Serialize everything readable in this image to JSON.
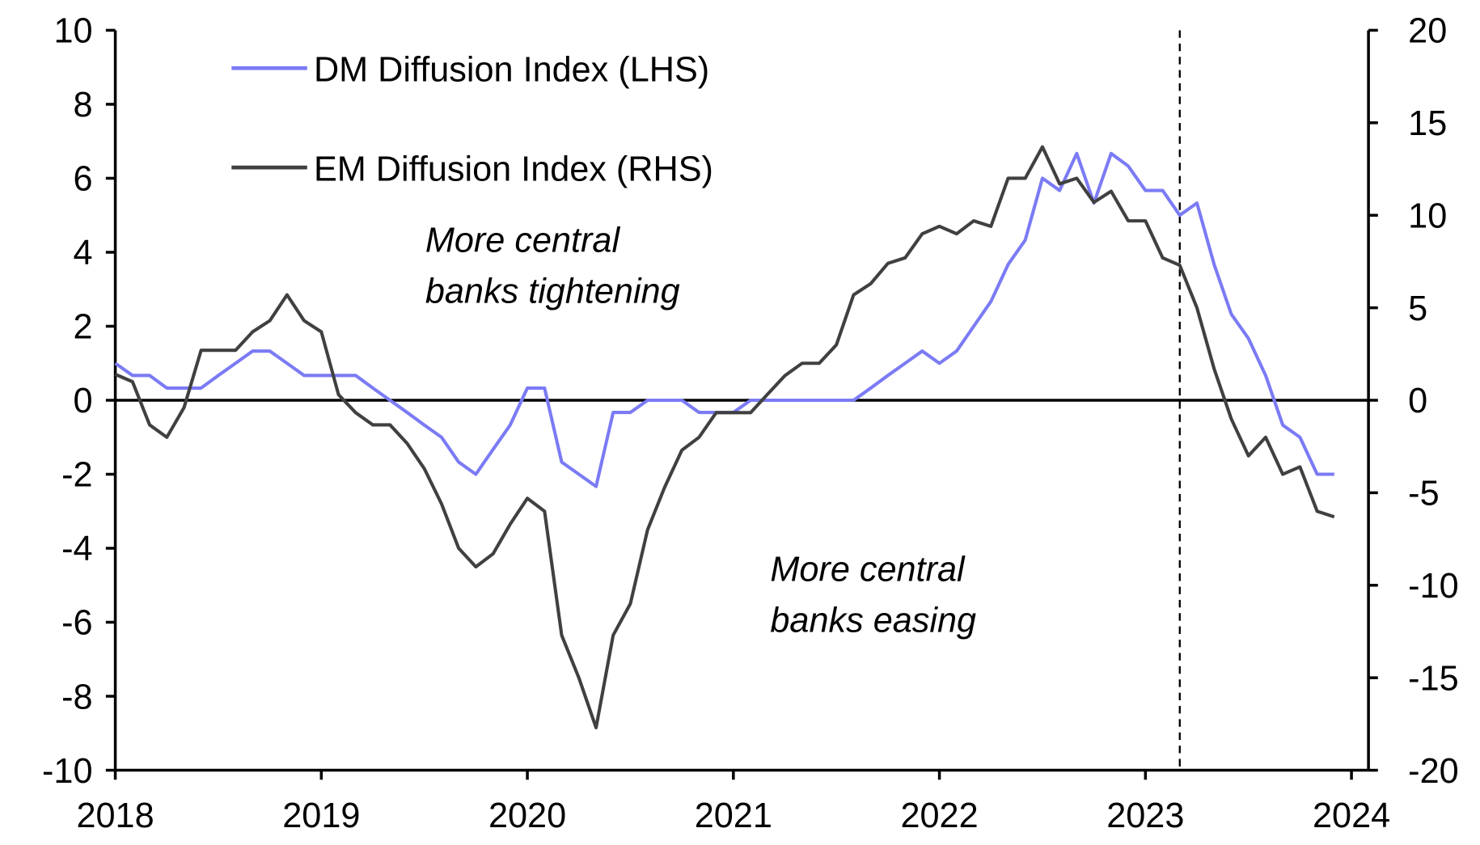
{
  "chart_data": {
    "type": "line",
    "x_start": "2018-01",
    "x_frequency": "monthly",
    "x_tick_labels": [
      "2018",
      "2019",
      "2020",
      "2021",
      "2022",
      "2023",
      "2024"
    ],
    "y_left": {
      "lim": [
        -10,
        10
      ],
      "ticks": [
        "10",
        "8",
        "6",
        "4",
        "2",
        "0",
        "-2",
        "-4",
        "-6",
        "-8",
        "-10"
      ]
    },
    "y_right": {
      "lim": [
        -20,
        20
      ],
      "ticks": [
        "20",
        "15",
        "10",
        "5",
        "0",
        "-5",
        "-10",
        "-15",
        "-20"
      ]
    },
    "grid": false,
    "zero_line": true,
    "vertical_marker": "2023-03",
    "legend_position": "top-left",
    "series": [
      {
        "name": "DM Diffusion Index (LHS)",
        "axis": "left",
        "color": "#7b7bf5",
        "values": [
          1.0,
          0.67,
          0.67,
          0.33,
          0.33,
          0.33,
          0.67,
          1.0,
          1.33,
          1.33,
          1.0,
          0.67,
          0.67,
          0.67,
          0.67,
          0.33,
          0,
          -0.33,
          -0.67,
          -1.0,
          -1.67,
          -2.0,
          -1.33,
          -0.67,
          0.33,
          0.33,
          -1.67,
          -2.0,
          -2.33,
          -0.33,
          -0.33,
          0,
          0,
          0,
          -0.33,
          -0.33,
          -0.33,
          0,
          0,
          0,
          0,
          0,
          0,
          0,
          0.33,
          0.67,
          1.0,
          1.33,
          1.0,
          1.33,
          2.0,
          2.67,
          3.67,
          4.33,
          6.0,
          5.67,
          6.67,
          5.33,
          6.67,
          6.33,
          5.67,
          5.67,
          5.0,
          5.33,
          3.67,
          2.33,
          1.67,
          0.67,
          -0.67,
          -1.0,
          -2.0,
          -2.0
        ]
      },
      {
        "name": "EM Diffusion Index (RHS)",
        "axis": "right",
        "color": "#404040",
        "values": [
          1.4,
          1.0,
          -1.33,
          -2.0,
          -0.4,
          2.7,
          2.7,
          2.7,
          3.7,
          4.3,
          5.7,
          4.3,
          3.7,
          0.3,
          -0.67,
          -1.33,
          -1.33,
          -2.33,
          -3.7,
          -5.6,
          -8.0,
          -9.0,
          -8.3,
          -6.7,
          -5.3,
          -6.0,
          -12.7,
          -15.0,
          -17.7,
          -12.7,
          -11.0,
          -7.0,
          -4.7,
          -2.7,
          -2.0,
          -0.67,
          -0.67,
          -0.67,
          0.33,
          1.33,
          2.0,
          2.0,
          3.0,
          5.7,
          6.3,
          7.4,
          7.7,
          9.0,
          9.4,
          9.0,
          9.7,
          9.4,
          12.0,
          12.0,
          13.7,
          11.7,
          12.0,
          10.7,
          11.3,
          9.7,
          9.7,
          7.7,
          7.3,
          5.0,
          1.7,
          -1.0,
          -3.0,
          -2.0,
          -4.0,
          -3.6,
          -6.0,
          -6.3
        ]
      }
    ],
    "annotations": [
      "More central",
      "banks tightening",
      "More central",
      "banks easing"
    ]
  }
}
